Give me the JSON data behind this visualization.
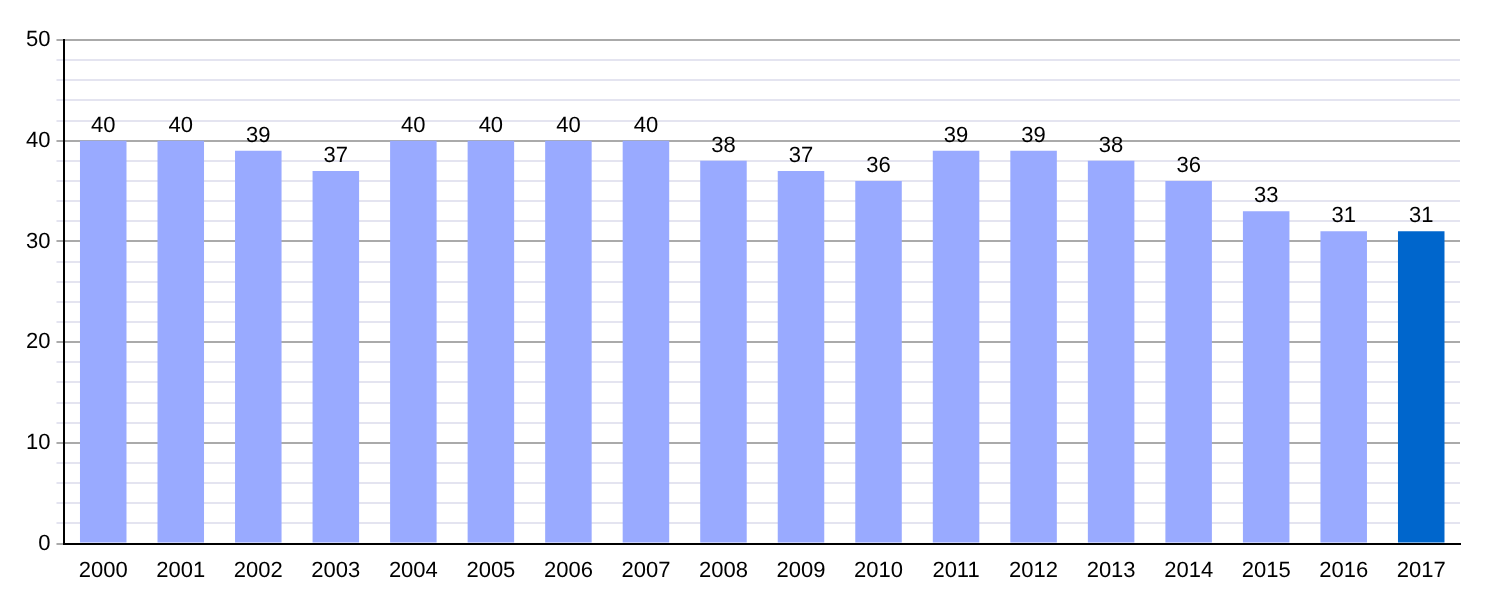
{
  "chart_data": {
    "type": "bar",
    "categories": [
      "2000",
      "2001",
      "2002",
      "2003",
      "2004",
      "2005",
      "2006",
      "2007",
      "2008",
      "2009",
      "2010",
      "2011",
      "2012",
      "2013",
      "2014",
      "2015",
      "2016",
      "2017"
    ],
    "values": [
      40,
      40,
      39,
      37,
      40,
      40,
      40,
      40,
      38,
      37,
      36,
      39,
      39,
      38,
      36,
      33,
      31,
      31
    ],
    "colors": [
      "#99aaff",
      "#99aaff",
      "#99aaff",
      "#99aaff",
      "#99aaff",
      "#99aaff",
      "#99aaff",
      "#99aaff",
      "#99aaff",
      "#99aaff",
      "#99aaff",
      "#99aaff",
      "#99aaff",
      "#99aaff",
      "#99aaff",
      "#99aaff",
      "#99aaff",
      "#0066cc"
    ],
    "ylim": [
      0,
      50
    ],
    "yticks": [
      0,
      {
        "value": 2,
        "label": null
      },
      {
        "value": 4,
        "label": null
      },
      {
        "value": 6,
        "label": null
      },
      {
        "value": 8,
        "label": null
      },
      10,
      {
        "value": 12,
        "label": null
      },
      {
        "value": 14,
        "label": null
      },
      {
        "value": 16,
        "label": null
      },
      {
        "value": 18,
        "label": null
      },
      20,
      {
        "value": 22,
        "label": null
      },
      {
        "value": 24,
        "label": null
      },
      {
        "value": 26,
        "label": null
      },
      {
        "value": 28,
        "label": null
      },
      30,
      {
        "value": 32,
        "label": null
      },
      {
        "value": 34,
        "label": null
      },
      {
        "value": 36,
        "label": null
      },
      {
        "value": 38,
        "label": null
      },
      40,
      {
        "value": 42,
        "label": null
      },
      {
        "value": 44,
        "label": null
      },
      {
        "value": 46,
        "label": null
      },
      {
        "value": 48,
        "label": null
      },
      50
    ],
    "grid": "y",
    "data_labels": true
  }
}
